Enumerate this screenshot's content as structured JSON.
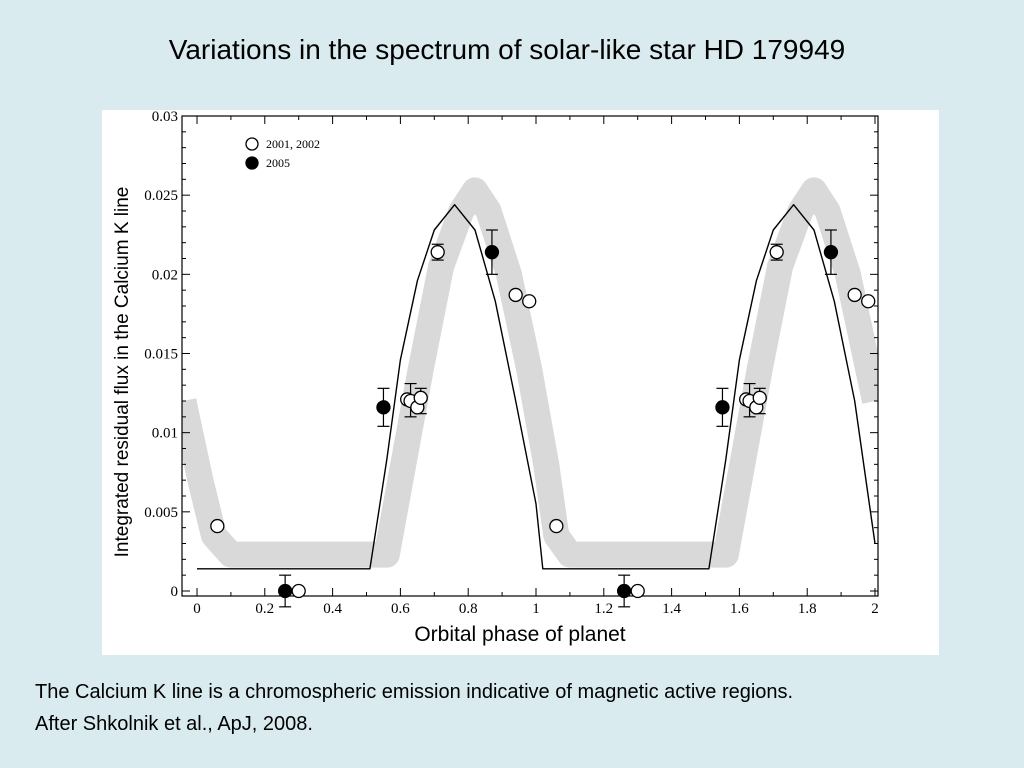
{
  "slide": {
    "title": "Variations in the spectrum of solar-like star HD 179949",
    "caption_line1": "The Calcium K line is a chromospheric emission indicative of magnetic active regions.",
    "caption_line2": "After Shkolnik et al., ApJ, 2008.",
    "background_color": "#d9ebef"
  },
  "chart_data": {
    "type": "scatter",
    "xlabel": "Orbital phase of planet",
    "ylabel": "Integrated residual flux in the Calcium K line",
    "xlim": [
      0,
      2
    ],
    "ylim": [
      0,
      0.03
    ],
    "x_ticks": [
      0,
      0.2,
      0.4,
      0.6,
      0.8,
      1,
      1.2,
      1.4,
      1.6,
      1.8,
      2
    ],
    "x_tick_labels": [
      "0",
      "0.2",
      "0.4",
      "0.6",
      "0.8",
      "1",
      "1.2",
      "1.4",
      "1.6",
      "1.8",
      "2"
    ],
    "y_ticks": [
      0,
      0.005,
      0.01,
      0.015,
      0.02,
      0.025,
      0.03
    ],
    "y_tick_labels": [
      "0",
      "0.005",
      "0.01",
      "0.015",
      "0.02",
      "0.025",
      "0.03"
    ],
    "legend_position": "top-left",
    "series": [
      {
        "name": "2001, 2002",
        "marker": "open-circle",
        "points": [
          {
            "x": 0.06,
            "y": 0.0041
          },
          {
            "x": 0.3,
            "y": 0.0
          },
          {
            "x": 0.62,
            "y": 0.0121
          },
          {
            "x": 0.63,
            "y": 0.012
          },
          {
            "x": 0.65,
            "y": 0.0116
          },
          {
            "x": 0.66,
            "y": 0.0122
          },
          {
            "x": 0.71,
            "y": 0.0214,
            "err": 0.0005
          },
          {
            "x": 0.94,
            "y": 0.0187
          },
          {
            "x": 0.98,
            "y": 0.0183
          },
          {
            "x": 1.06,
            "y": 0.0041
          },
          {
            "x": 1.3,
            "y": 0.0
          },
          {
            "x": 1.62,
            "y": 0.0121
          },
          {
            "x": 1.63,
            "y": 0.012
          },
          {
            "x": 1.65,
            "y": 0.0116
          },
          {
            "x": 1.66,
            "y": 0.0122
          },
          {
            "x": 1.71,
            "y": 0.0214,
            "err": 0.0005
          },
          {
            "x": 1.94,
            "y": 0.0187
          },
          {
            "x": 1.98,
            "y": 0.0183
          }
        ]
      },
      {
        "name": "2005",
        "marker": "filled-circle",
        "points": [
          {
            "x": 0.26,
            "y": 0.0,
            "err": 0.001
          },
          {
            "x": 0.55,
            "y": 0.0116,
            "err": 0.0012
          },
          {
            "x": 0.87,
            "y": 0.0214,
            "err": 0.0014
          },
          {
            "x": 1.26,
            "y": 0.0,
            "err": 0.001
          },
          {
            "x": 1.55,
            "y": 0.0116,
            "err": 0.0012
          },
          {
            "x": 1.87,
            "y": 0.0214,
            "err": 0.0014
          }
        ]
      }
    ],
    "error_bars_open": [
      {
        "x": 0.63,
        "ylo": 0.011,
        "yhi": 0.0131
      },
      {
        "x": 0.66,
        "ylo": 0.0112,
        "yhi": 0.0128
      },
      {
        "x": 1.63,
        "ylo": 0.011,
        "yhi": 0.0131
      },
      {
        "x": 1.66,
        "ylo": 0.0112,
        "yhi": 0.0128
      }
    ],
    "model_curve": {
      "style": "black-line",
      "points": [
        [
          0,
          0.0014
        ],
        [
          0.51,
          0.0014
        ],
        [
          0.56,
          0.0083
        ],
        [
          0.6,
          0.0146
        ],
        [
          0.65,
          0.0196
        ],
        [
          0.7,
          0.0228
        ],
        [
          0.76,
          0.0244
        ],
        [
          0.82,
          0.0228
        ],
        [
          0.88,
          0.0183
        ],
        [
          0.94,
          0.012
        ],
        [
          1.0,
          0.0055
        ],
        [
          1.02,
          0.0014
        ],
        [
          1.51,
          0.0014
        ],
        [
          1.56,
          0.0083
        ],
        [
          1.6,
          0.0146
        ],
        [
          1.65,
          0.0196
        ],
        [
          1.7,
          0.0228
        ],
        [
          1.76,
          0.0244
        ],
        [
          1.82,
          0.0228
        ],
        [
          1.88,
          0.0183
        ],
        [
          1.94,
          0.012
        ],
        [
          1.98,
          0.006
        ],
        [
          2.0,
          0.003
        ]
      ]
    },
    "shaded_band": {
      "style": "grey-band",
      "points": [
        [
          -0.04,
          0.012
        ],
        [
          0.01,
          0.007
        ],
        [
          0.05,
          0.0035
        ],
        [
          0.1,
          0.0023
        ],
        [
          0.56,
          0.0023
        ],
        [
          0.6,
          0.007
        ],
        [
          0.66,
          0.014
        ],
        [
          0.72,
          0.0205
        ],
        [
          0.78,
          0.024
        ],
        [
          0.82,
          0.0253
        ],
        [
          0.86,
          0.024
        ],
        [
          0.92,
          0.02
        ],
        [
          0.98,
          0.014
        ],
        [
          1.03,
          0.008
        ],
        [
          1.06,
          0.0035
        ],
        [
          1.1,
          0.0023
        ],
        [
          1.56,
          0.0023
        ],
        [
          1.6,
          0.007
        ],
        [
          1.66,
          0.014
        ],
        [
          1.72,
          0.0205
        ],
        [
          1.78,
          0.024
        ],
        [
          1.82,
          0.0253
        ],
        [
          1.86,
          0.024
        ],
        [
          1.92,
          0.02
        ],
        [
          1.98,
          0.014
        ],
        [
          2.0,
          0.012
        ]
      ]
    }
  }
}
